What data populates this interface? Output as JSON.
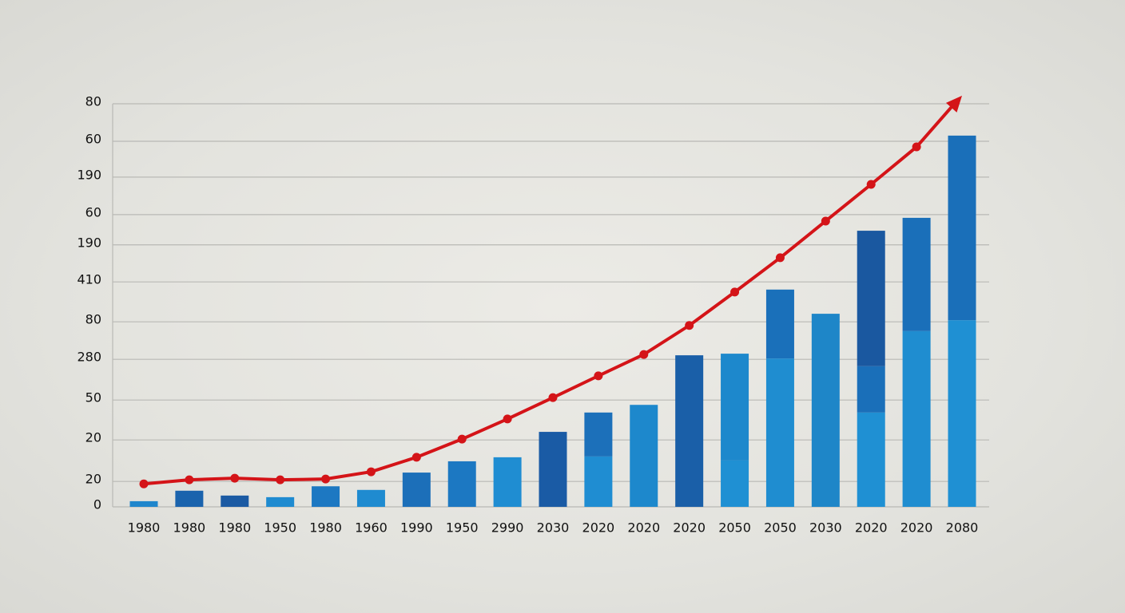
{
  "chart_data": {
    "type": "bar",
    "categories": [
      "1980",
      "1980",
      "1980",
      "1950",
      "1980",
      "1960",
      "1990",
      "1950",
      "2990",
      "2030",
      "2020",
      "2020",
      "2020",
      "2050",
      "2050",
      "2030",
      "2020",
      "2020",
      "2080"
    ],
    "series": [
      {
        "colors": [
          "#1f86cc",
          "#1a63ad",
          "#1b5aa3",
          "#1f8bd0",
          "#1d78c2",
          "#1f8bd0",
          "#1c6fb9",
          "#1c78c2",
          "#1f8dd2",
          "#1a5ba5",
          "#1f8dd2",
          "#1d88cc",
          "#1a5fa8",
          "#1f90d3",
          "#1f8dd0",
          "#1e86c8",
          "#1f90d3",
          "#1f8dd0",
          "#1f90d3"
        ],
        "values": [
          1.4,
          4.0,
          2.8,
          2.4,
          5.1,
          4.2,
          8.5,
          11.3,
          12.3,
          18.6,
          12.5,
          25.3,
          37.6,
          11.5,
          36.8,
          47.9,
          23.4,
          43.6,
          46.3
        ]
      },
      {
        "colors": [
          null,
          null,
          null,
          null,
          null,
          null,
          null,
          null,
          null,
          null,
          "#1c70ba",
          null,
          null,
          "#1d88cc",
          "#1a70ba",
          null,
          "#1a6fb9",
          "#1a6fb9",
          "#1a6fb9"
        ],
        "values": [
          null,
          null,
          null,
          null,
          null,
          null,
          null,
          null,
          null,
          null,
          10.9,
          null,
          null,
          26.5,
          17.1,
          null,
          11.5,
          28.1,
          45.8
        ]
      },
      {
        "colors": [
          null,
          null,
          null,
          null,
          null,
          null,
          null,
          null,
          null,
          null,
          null,
          null,
          null,
          null,
          null,
          null,
          "#1a58a0",
          null,
          null
        ],
        "values": [
          null,
          null,
          null,
          null,
          null,
          null,
          null,
          null,
          null,
          null,
          null,
          null,
          null,
          null,
          null,
          null,
          33.6,
          null,
          null
        ]
      }
    ],
    "line": {
      "color": "#d41418",
      "values": [
        5.7,
        6.7,
        7.1,
        6.7,
        6.9,
        8.7,
        12.3,
        16.8,
        21.8,
        27.1,
        32.5,
        37.8,
        45.0,
        53.3,
        61.8,
        70.9,
        80.0,
        89.3,
        102
      ]
    },
    "ylim": [
      0,
      100
    ],
    "yticks": [
      0,
      {
        "value": 6.3,
        "label": "20"
      },
      {
        "value": 16.6,
        "label": "20"
      },
      {
        "value": 26.5,
        "label": "50"
      },
      {
        "value": 36.6,
        "label": "280"
      },
      {
        "value": 45.9,
        "label": "80"
      },
      {
        "value": 55.8,
        "label": "410"
      },
      {
        "value": 65,
        "label": "190"
      },
      {
        "value": 72.5,
        "label": "60"
      },
      {
        "value": 81.8,
        "label": "190"
      },
      {
        "value": 90.7,
        "label": "60"
      },
      {
        "value": 100,
        "label": "80"
      }
    ],
    "grid": true
  }
}
